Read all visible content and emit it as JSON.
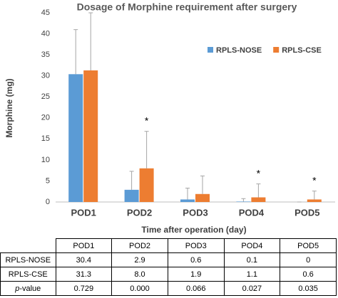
{
  "chart_data": {
    "type": "bar",
    "title": "Dosage of Morphine requirement after surgery",
    "x_label": "Time after operation (day)",
    "y_label": "Morphine (mg)",
    "categories": [
      "POD1",
      "POD2",
      "POD3",
      "POD4",
      "POD5"
    ],
    "series": [
      {
        "name": "RPLS-NOSE",
        "color": "#5b9bd5",
        "values": [
          30.4,
          2.9,
          0.6,
          0.1,
          0
        ],
        "errors": [
          10.6,
          4.4,
          2.7,
          0.7,
          0
        ]
      },
      {
        "name": "RPLS-CSE",
        "color": "#ed7d31",
        "values": [
          31.3,
          8.0,
          1.9,
          1.1,
          0.6
        ],
        "errors": [
          13.7,
          8.8,
          4.3,
          3.2,
          2.0
        ]
      }
    ],
    "annotations": [
      {
        "text": "*",
        "x": "POD2",
        "series": "RPLS-CSE"
      },
      {
        "text": "*",
        "x": "POD4",
        "series": "RPLS-CSE"
      },
      {
        "text": "*",
        "x": "POD5",
        "series": "RPLS-CSE"
      }
    ],
    "ylim": [
      0,
      45
    ],
    "yticks": [
      0,
      5,
      10,
      15,
      20,
      25,
      30,
      35,
      40,
      45
    ],
    "grid": false,
    "legend": "upper right"
  },
  "table": {
    "header": [
      "POD1",
      "POD2",
      "POD3",
      "POD4",
      "POD5"
    ],
    "rows": [
      [
        "RPLS-NOSE",
        "30.4",
        "2.9",
        "0.6",
        "0.1",
        "0"
      ],
      [
        "RPLS-CSE",
        "31.3",
        "8.0",
        "1.9",
        "1.1",
        "0.6"
      ],
      [
        "p-value",
        "0.729",
        "0.000",
        "0.066",
        "0.027",
        "0.035"
      ]
    ]
  }
}
